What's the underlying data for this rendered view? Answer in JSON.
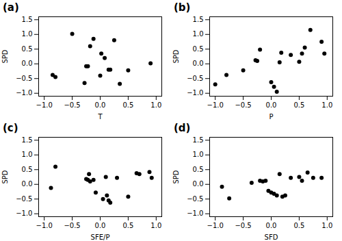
{
  "chart_data": [
    {
      "type": "scatter",
      "title": "(a)",
      "xlabel": "T",
      "ylabel": "SPD",
      "x": [
        -0.85,
        -0.8,
        -0.5,
        -0.28,
        -0.25,
        -0.22,
        -0.18,
        -0.12,
        0.0,
        0.02,
        0.08,
        0.15,
        0.18,
        0.25,
        0.35,
        0.5,
        0.9
      ],
      "y": [
        -0.38,
        -0.45,
        1.02,
        -0.65,
        -0.08,
        -0.08,
        0.6,
        0.85,
        -0.4,
        0.35,
        0.2,
        -0.2,
        -0.2,
        0.8,
        -0.68,
        -0.22,
        0.02
      ],
      "color": "#000000",
      "xlim": [
        -1.1,
        1.1
      ],
      "ylim": [
        -1.1,
        1.6
      ],
      "xticks": [
        {
          "value": -1.0,
          "label": "−1.0"
        },
        {
          "value": -0.5,
          "label": "−0.5"
        },
        {
          "value": 0.0,
          "label": "0.0"
        },
        0.5,
        {
          "value": 1.0,
          "label": "1.0"
        }
      ],
      "yticks": [
        {
          "value": -1.0,
          "label": "−1.0"
        },
        {
          "value": -0.5,
          "label": "−0.5"
        },
        {
          "value": 0.0,
          "label": "0.0"
        },
        0.5,
        {
          "value": 1.0,
          "label": "1.0"
        },
        1.5
      ]
    },
    {
      "type": "scatter",
      "title": "(b)",
      "xlabel": "P",
      "ylabel": "SPD",
      "x": [
        -1.0,
        -0.8,
        -0.5,
        -0.28,
        -0.25,
        -0.2,
        0.0,
        0.05,
        0.1,
        0.15,
        0.18,
        0.35,
        0.5,
        0.55,
        0.6,
        0.7,
        0.9,
        0.95
      ],
      "y": [
        -0.7,
        -0.38,
        -0.22,
        0.12,
        0.1,
        0.48,
        -0.62,
        -0.78,
        -0.95,
        0.05,
        0.38,
        0.3,
        0.07,
        0.35,
        0.55,
        1.15,
        0.75,
        0.35
      ],
      "color": "#000000",
      "xlim": [
        -1.1,
        1.1
      ],
      "ylim": [
        -1.1,
        1.6
      ],
      "xticks": [
        {
          "value": -1.0,
          "label": "−1.0"
        },
        {
          "value": -0.5,
          "label": "−0.5"
        },
        {
          "value": 0.0,
          "label": "0.0"
        },
        0.5,
        {
          "value": 1.0,
          "label": "1.0"
        }
      ],
      "yticks": [
        {
          "value": -1.0,
          "label": "−1.0"
        },
        {
          "value": -0.5,
          "label": "−0.5"
        },
        {
          "value": 0.0,
          "label": "0.0"
        },
        0.5,
        {
          "value": 1.0,
          "label": "1.0"
        },
        1.5
      ]
    },
    {
      "type": "scatter",
      "title": "(c)",
      "xlabel": "SFE/P",
      "ylabel": "SPD",
      "x": [
        -0.88,
        -0.8,
        -0.25,
        -0.22,
        -0.2,
        -0.18,
        -0.12,
        -0.08,
        0.05,
        0.1,
        0.12,
        0.15,
        0.18,
        0.3,
        0.5,
        0.65,
        0.7,
        0.88,
        0.92
      ],
      "y": [
        -0.12,
        0.6,
        0.18,
        0.15,
        0.35,
        0.1,
        0.15,
        -0.28,
        -0.5,
        0.25,
        -0.38,
        -0.55,
        -0.62,
        0.22,
        -0.42,
        0.38,
        0.35,
        0.42,
        0.22
      ],
      "color": "#000000",
      "xlim": [
        -1.1,
        1.1
      ],
      "ylim": [
        -1.1,
        1.6
      ],
      "xticks": [
        {
          "value": -1.0,
          "label": "−1.0"
        },
        {
          "value": -0.5,
          "label": "−0.5"
        },
        {
          "value": 0.0,
          "label": "0.0"
        },
        0.5,
        {
          "value": 1.0,
          "label": "1.0"
        }
      ],
      "yticks": [
        {
          "value": -1.0,
          "label": "−1.0"
        },
        {
          "value": -0.5,
          "label": "−0.5"
        },
        {
          "value": 0.0,
          "label": "0.0"
        },
        0.5,
        {
          "value": 1.0,
          "label": "1.0"
        },
        1.5
      ]
    },
    {
      "type": "scatter",
      "title": "(d)",
      "xlabel": "SFD",
      "ylabel": "SPD",
      "x": [
        -0.88,
        -0.75,
        -0.35,
        -0.2,
        -0.15,
        -0.1,
        -0.05,
        0.0,
        0.05,
        0.1,
        0.15,
        0.2,
        0.25,
        0.35,
        0.5,
        0.55,
        0.65,
        0.75,
        0.9
      ],
      "y": [
        -0.08,
        -0.48,
        0.05,
        0.12,
        0.1,
        0.12,
        -0.22,
        -0.28,
        -0.32,
        -0.38,
        0.35,
        -0.42,
        -0.38,
        0.22,
        0.25,
        0.12,
        0.4,
        0.22,
        0.22
      ],
      "color": "#000000",
      "xlim": [
        -1.1,
        1.1
      ],
      "ylim": [
        -1.1,
        1.6
      ],
      "xticks": [
        {
          "value": -1.0,
          "label": "−1.0"
        },
        {
          "value": -0.5,
          "label": "−0.5"
        },
        {
          "value": 0.0,
          "label": "0.0"
        },
        0.5,
        {
          "value": 1.0,
          "label": "1.0"
        }
      ],
      "yticks": [
        {
          "value": -1.0,
          "label": "−1.0"
        },
        {
          "value": -0.5,
          "label": "−0.5"
        },
        {
          "value": 0.0,
          "label": "0.0"
        },
        0.5,
        {
          "value": 1.0,
          "label": "1.0"
        },
        1.5
      ]
    }
  ]
}
